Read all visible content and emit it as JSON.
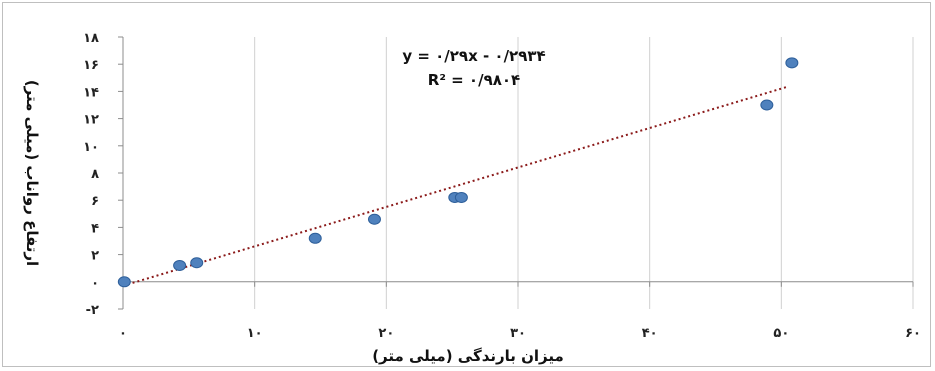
{
  "chart_data": {
    "type": "scatter",
    "xlabel": "میزان بارندگی (میلی متر)",
    "ylabel": "ارتفاع رواناب (میلی متر)",
    "xlim": [
      0,
      60
    ],
    "ylim": [
      -2,
      18
    ],
    "x_ticks": [
      0,
      10,
      20,
      30,
      40,
      50,
      60
    ],
    "y_ticks": [
      -2,
      0,
      2,
      4,
      6,
      8,
      10,
      12,
      14,
      16,
      18
    ],
    "x_tick_labels": [
      "۰",
      "۱۰",
      "۲۰",
      "۳۰",
      "۴۰",
      "۵۰",
      "۶۰"
    ],
    "y_tick_labels": [
      "-۲",
      "۰",
      "۲",
      "۴",
      "۶",
      "۸",
      "۱۰",
      "۱۲",
      "۱۴",
      "۱۶",
      "۱۸"
    ],
    "grid": "vertical",
    "points": {
      "x": [
        0.1,
        4.3,
        5.6,
        14.6,
        19.1,
        25.2,
        25.7,
        48.9,
        50.8
      ],
      "y": [
        0.0,
        1.2,
        1.4,
        3.2,
        4.6,
        6.2,
        6.2,
        13.0,
        16.1
      ]
    },
    "trendline": {
      "kind": "linear",
      "slope": 0.29,
      "intercept": -0.2934,
      "x_range": [
        0,
        50.5
      ],
      "equation_label": "y = ۰/۲۹x - ۰/۲۹۳۴",
      "r2_label": "R² = ۰/۹۸۰۴"
    },
    "colors": {
      "marker_fill": "#4f81bd",
      "marker_stroke": "#2e5f9a",
      "trendline": "#8b1a1a",
      "grid": "#d0d0d0",
      "axis": "#8c8c8c"
    }
  }
}
